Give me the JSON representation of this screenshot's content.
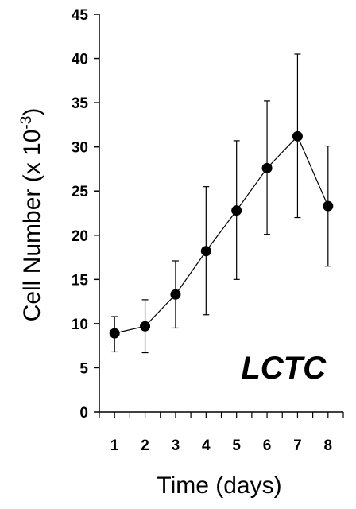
{
  "chart_data": {
    "type": "line",
    "title": "",
    "xlabel": "Time (days)",
    "ylabel_main": "Cell Number (x 10",
    "ylabel_exp": "-3",
    "ylabel_close": ")",
    "annotation": "LCTC",
    "x": [
      1,
      2,
      3,
      4,
      5,
      6,
      7,
      8
    ],
    "x_tick_labels": [
      "1",
      "2",
      "3",
      "4",
      "5",
      "6",
      "7",
      "8"
    ],
    "y_tick_labels": [
      "0",
      "5",
      "10",
      "15",
      "20",
      "25",
      "30",
      "35",
      "40",
      "45"
    ],
    "ylim": [
      0,
      45
    ],
    "xlim": [
      0.5,
      8.5
    ],
    "grid": false,
    "series": [
      {
        "values": [
          8.9,
          9.7,
          13.3,
          18.2,
          22.8,
          27.6,
          31.2,
          23.3
        ],
        "err_low": [
          6.8,
          6.7,
          9.5,
          11.0,
          15.0,
          20.1,
          22.0,
          16.5
        ],
        "err_high": [
          10.8,
          12.7,
          17.1,
          25.5,
          30.7,
          35.2,
          40.5,
          30.1
        ]
      }
    ]
  }
}
